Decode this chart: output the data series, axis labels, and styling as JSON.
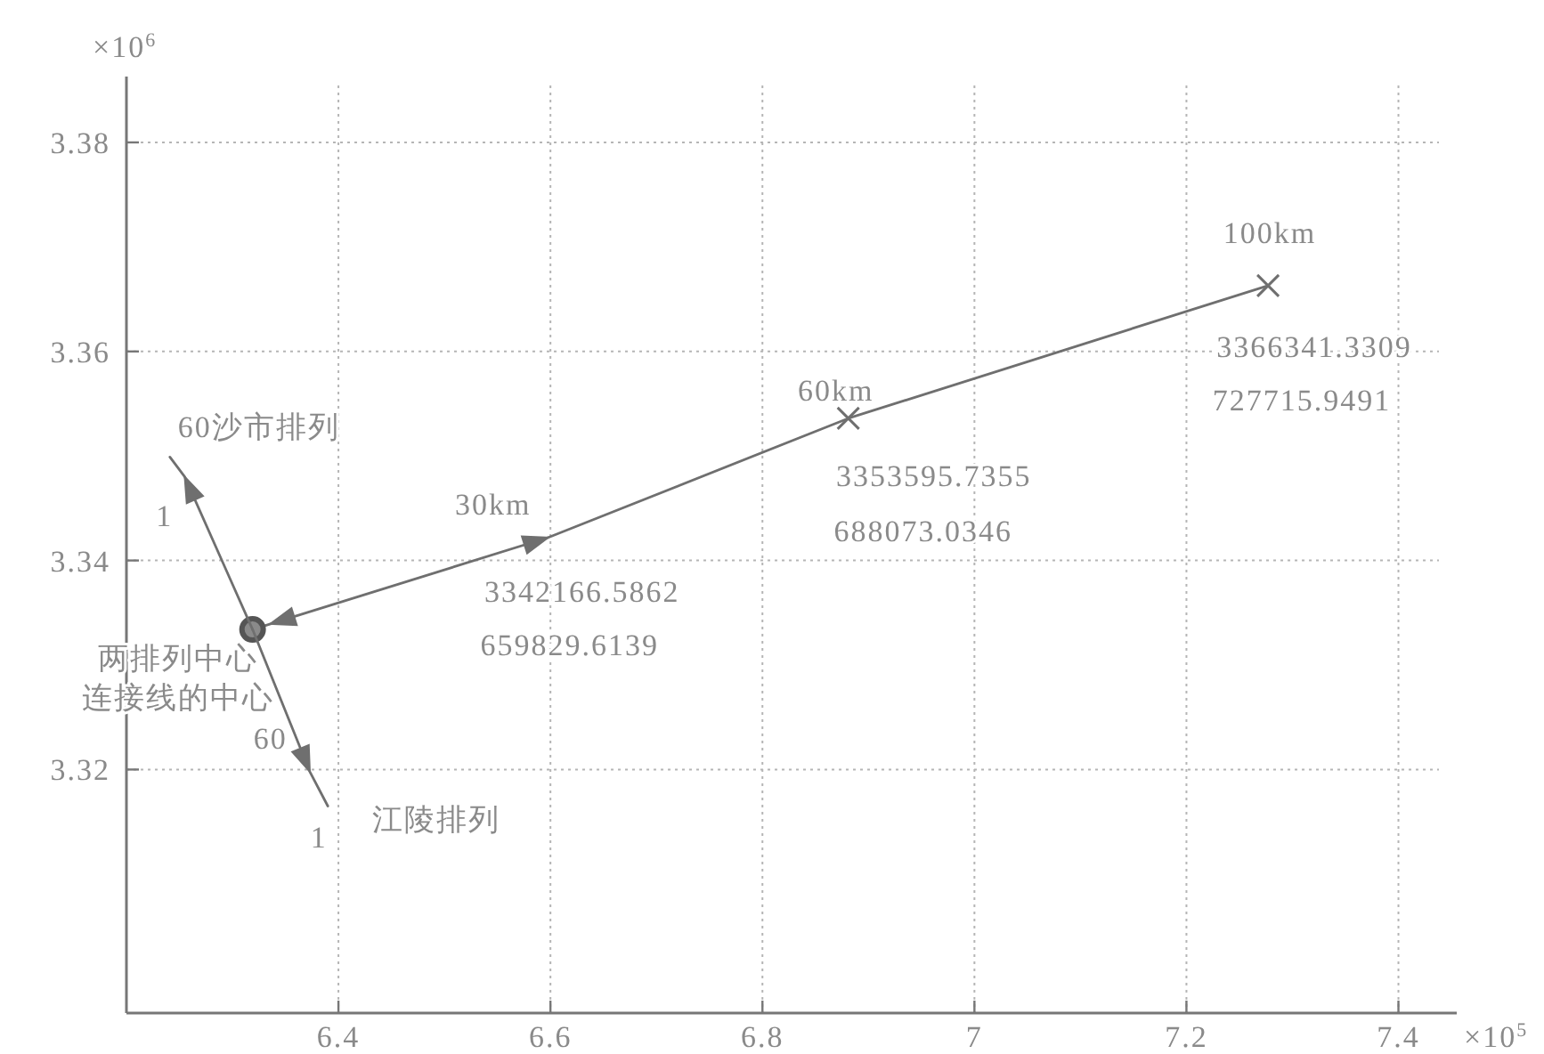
{
  "chart_data": {
    "type": "line",
    "xlabel": "×10$^{5}$",
    "ylabel": "×10$^{6}$",
    "xlim": [
      6.2,
      7.455
    ],
    "ylim": [
      3.2967,
      3.3863
    ],
    "xticks": [
      6.4,
      6.6,
      6.8,
      7,
      7.2,
      7.4
    ],
    "yticks": [
      3.32,
      3.34,
      3.36,
      3.38
    ],
    "grid": true,
    "series": [
      {
        "color": "#6f6f6f",
        "x": [
          6.598,
          6.881,
          7.277
        ],
        "values": [
          3.3422,
          3.3536,
          3.3663
        ]
      },
      {
        "type": "scatter",
        "marker": "cross",
        "color": "#6f6f6f",
        "x": [
          6.881,
          7.277
        ],
        "values": [
          3.3536,
          3.3663
        ]
      },
      {
        "type": "scatter",
        "marker": "circle",
        "color": "#555555",
        "x": [
          6.319
        ],
        "values": [
          3.3334
        ]
      },
      {
        "color": "#6f6f6f",
        "x": [
          6.319,
          6.255,
          6.241
        ],
        "values": [
          3.3334,
          3.348,
          3.3499
        ]
      },
      {
        "color": "#6f6f6f",
        "x": [
          6.319,
          6.373,
          6.39
        ],
        "values": [
          3.3334,
          3.3198,
          3.3165
        ]
      }
    ],
    "annotations": [
      {
        "text": "100km",
        "x": 7.277,
        "y": 3.3663
      },
      {
        "text": "3366341.3309",
        "x": 7.277,
        "y": 3.3663
      },
      "727715.9491",
      {
        "text": "60km",
        "x": 6.881,
        "y": 3.3536
      },
      {
        "text": "3353595.7355",
        "x": 6.881,
        "y": 3.3536
      },
      "688073.0346",
      {
        "text": "30km",
        "x": 6.598,
        "y": 3.3422
      },
      {
        "text": "3342166.5862",
        "x": 6.598,
        "y": 3.3422
      },
      "659829.6139",
      {
        "text": "60沙市排列",
        "x": 6.241,
        "y": 3.3499
      },
      {
        "text": "1",
        "x": 6.241,
        "y": 3.3499
      },
      {
        "text": "两排列中心",
        "x": 6.319,
        "y": 3.3334
      },
      {
        "text": "连接线的中心",
        "x": 6.319,
        "y": 3.3334
      },
      "60",
      {
        "text": "1",
        "x": 6.39,
        "y": 3.3165
      },
      {
        "text": "江陵排列",
        "x": 6.39,
        "y": 3.3165
      }
    ]
  }
}
